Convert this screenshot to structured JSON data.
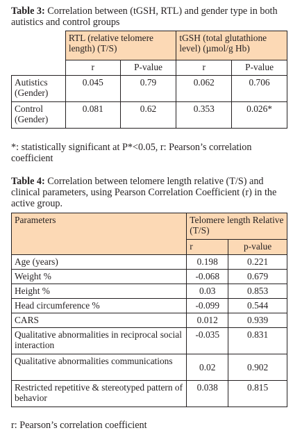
{
  "table3": {
    "caption_label": "Table 3:",
    "caption_text": " Correlation between (tGSH, RTL) and gender type in both autistics and control groups",
    "col_rtl": "RTL (relative telomere length) (T/S)",
    "col_tgsh": "tGSH (total glutathione level) (µmol/g Hb)",
    "sub_r1": "r",
    "sub_p1": "P-value",
    "sub_r2": "r",
    "sub_p2": "P-value",
    "rows": [
      {
        "label": "Autistics (Gender)",
        "rtl_r": "0.045",
        "rtl_p": "0.79",
        "tgsh_r": "0.062",
        "tgsh_p": "0.706"
      },
      {
        "label": "Control (Gender)",
        "rtl_r": "0.081",
        "rtl_p": "0.62",
        "tgsh_r": "0.353",
        "tgsh_p": "0.026*"
      }
    ],
    "footnote": "*: statistically significant at P*<0.05, r: Pearson’s correlation coefficient"
  },
  "table4": {
    "caption_label": "Table 4:",
    "caption_text": " Correlation between telomere length relative (T/S) and clinical parameters, using Pearson Correlation Coefficient (r) in the active group.",
    "col_params": "Parameters",
    "col_tl": "Telomere length Relative (T/S)",
    "sub_r": "r",
    "sub_p": "p-value",
    "rows": [
      {
        "label": "Age (years)",
        "r": "0.198",
        "p": "0.221"
      },
      {
        "label": "Weight %",
        "r": "-0.068",
        "p": "0.679"
      },
      {
        "label": "Height %",
        "r": "0.03",
        "p": "0.853"
      },
      {
        "label": "Head circumference %",
        "r": "-0.099",
        "p": "0.544"
      },
      {
        "label": "CARS",
        "r": "0.012",
        "p": "0.939"
      },
      {
        "label": "Qualitative abnormalities in reciprocal social interaction",
        "r": "-0.035",
        "p": "0.831"
      },
      {
        "label": "Qualitative abnormalities communications",
        "r": "0.02",
        "p": "0.902"
      },
      {
        "label": "Restricted repetitive & stereotyped pattern of behavior",
        "r": "0.038",
        "p": "0.815"
      }
    ],
    "footnote": "r: Pearson’s correlation coefficient"
  }
}
